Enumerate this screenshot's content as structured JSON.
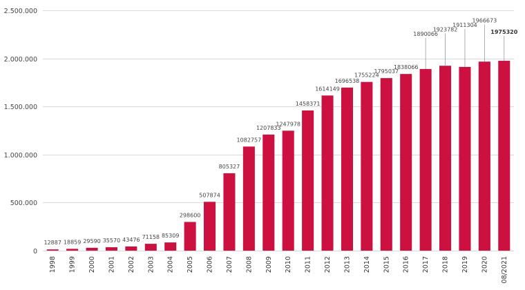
{
  "chart_data": {
    "type": "bar",
    "title": "",
    "xlabel": "",
    "ylabel": "",
    "categories": [
      "1998",
      "1999",
      "2000",
      "2001",
      "2002",
      "2003",
      "2004",
      "2005",
      "2006",
      "2007",
      "2008",
      "2009",
      "2010",
      "2011",
      "2012",
      "2013",
      "2014",
      "2015",
      "2016",
      "2017",
      "2018",
      "2019",
      "2020",
      "08/2021"
    ],
    "values": [
      12887,
      18859,
      29590,
      35570,
      43476,
      71158,
      85309,
      298600,
      507874,
      805327,
      1082757,
      1207833,
      1247978,
      1458371,
      1614149,
      1696538,
      1755224,
      1795037,
      1838066,
      1890066,
      1923782,
      1911304,
      1966673,
      1975320
    ],
    "ylim": [
      0,
      2500000
    ],
    "yticks": [
      0,
      500000,
      1000000,
      1500000,
      2000000,
      2500000
    ],
    "ytick_labels": [
      "0",
      "500.000",
      "1.000.000",
      "1.500.000",
      "2.000.000",
      "2.500.000"
    ],
    "grid": true,
    "legend": "none",
    "bar_color": "#cc1140",
    "emphasized_label": "1975320"
  }
}
